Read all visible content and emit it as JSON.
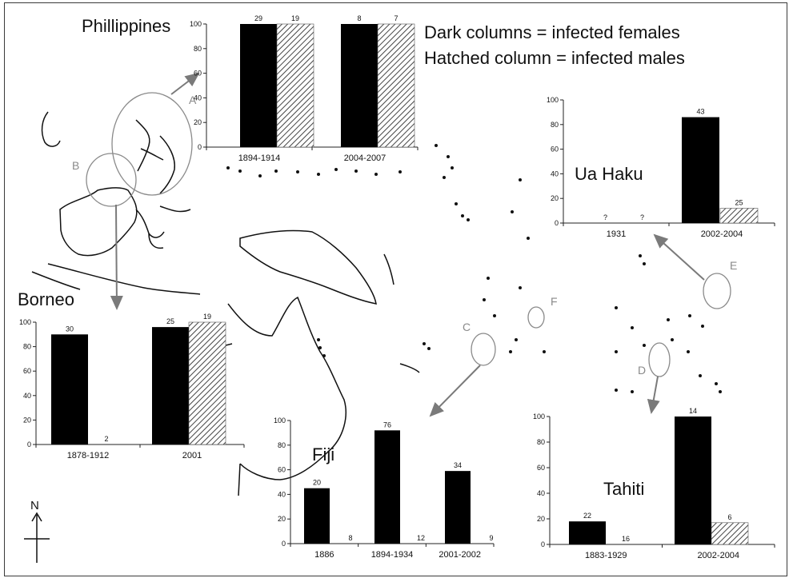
{
  "legend": {
    "line1": "Dark columns = infected females",
    "line2": "Hatched column = infected males"
  },
  "map_letters": [
    "A",
    "B",
    "C",
    "D",
    "E",
    "F"
  ],
  "compass": {
    "label": "N"
  },
  "colors": {
    "female": "#000000",
    "male_hatch": "#555555",
    "map_line": "#111111",
    "pointer": "#7a7a7a"
  },
  "chart_data": [
    {
      "id": "phillippines",
      "type": "bar",
      "title": "Phillippines",
      "categories": [
        "1894-1914",
        "2004-2007"
      ],
      "series": [
        {
          "name": "infected females",
          "values": [
            100,
            100
          ],
          "labels": [
            "29",
            "8"
          ]
        },
        {
          "name": "infected males",
          "values": [
            100,
            100
          ],
          "labels": [
            "19",
            "7"
          ]
        }
      ],
      "ylim": [
        0,
        100
      ],
      "yticks": [
        "0",
        "20",
        "40",
        "60",
        "80",
        "100"
      ]
    },
    {
      "id": "ua-haku",
      "type": "bar",
      "title": "Ua Haku",
      "categories": [
        "1931",
        "2002-2004"
      ],
      "series": [
        {
          "name": "infected females",
          "values": [
            0,
            86
          ],
          "labels": [
            "?",
            "43"
          ]
        },
        {
          "name": "infected males",
          "values": [
            0,
            12
          ],
          "labels": [
            "?",
            "25"
          ]
        }
      ],
      "ylim": [
        0,
        100
      ],
      "yticks": [
        "0",
        "20",
        "40",
        "60",
        "80",
        "100"
      ]
    },
    {
      "id": "borneo",
      "type": "bar",
      "title": "Borneo",
      "categories": [
        "1878-1912",
        "2001"
      ],
      "series": [
        {
          "name": "infected females",
          "values": [
            90,
            96
          ],
          "labels": [
            "30",
            "25"
          ]
        },
        {
          "name": "infected males",
          "values": [
            0,
            100
          ],
          "labels": [
            "2",
            "19"
          ]
        }
      ],
      "ylim": [
        0,
        100
      ],
      "yticks": [
        "0",
        "20",
        "40",
        "60",
        "80",
        "100"
      ]
    },
    {
      "id": "fiji",
      "type": "bar",
      "title": "Fiji",
      "categories": [
        "1886",
        "1894-1934",
        "2001-2002"
      ],
      "series": [
        {
          "name": "infected females",
          "values": [
            45,
            92,
            59
          ],
          "labels": [
            "20",
            "76",
            "34"
          ]
        },
        {
          "name": "infected males",
          "values": [
            0,
            0,
            0
          ],
          "labels": [
            "8",
            "12",
            "9"
          ]
        }
      ],
      "ylim": [
        0,
        100
      ],
      "yticks": [
        "0",
        "20",
        "40",
        "60",
        "80",
        "100"
      ]
    },
    {
      "id": "tahiti",
      "type": "bar",
      "title": "Tahiti",
      "categories": [
        "1883-1929",
        "2002-2004"
      ],
      "series": [
        {
          "name": "infected females",
          "values": [
            18,
            100
          ],
          "labels": [
            "22",
            "14"
          ]
        },
        {
          "name": "infected males",
          "values": [
            0,
            17
          ],
          "labels": [
            "16",
            "6"
          ]
        }
      ],
      "ylim": [
        0,
        100
      ],
      "yticks": [
        "0",
        "20",
        "40",
        "60",
        "80",
        "100"
      ]
    }
  ]
}
